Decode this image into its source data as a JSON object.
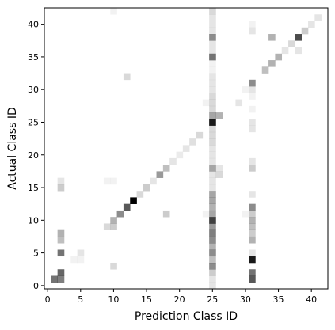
{
  "chart_data": {
    "type": "heatmap",
    "title": "",
    "xlabel": "Prediction Class ID",
    "ylabel": "Actual Class ID",
    "xlim": [
      0,
      43
    ],
    "ylim": [
      0,
      43
    ],
    "xticks": [
      0,
      5,
      10,
      15,
      20,
      25,
      30,
      35,
      40
    ],
    "yticks": [
      0,
      5,
      10,
      15,
      20,
      25,
      30,
      35,
      40
    ],
    "grid": false,
    "legend": "none",
    "cell_color": "#000000",
    "cells": [
      [
        1,
        1,
        0.55
      ],
      [
        2,
        1,
        0.5
      ],
      [
        2,
        2,
        0.6
      ],
      [
        2,
        5,
        0.55
      ],
      [
        2,
        7,
        0.25
      ],
      [
        2,
        8,
        0.3
      ],
      [
        2,
        15,
        0.2
      ],
      [
        2,
        16,
        0.1
      ],
      [
        4,
        4,
        0.05
      ],
      [
        5,
        5,
        0.1
      ],
      [
        5,
        4,
        0.05
      ],
      [
        9,
        9,
        0.15
      ],
      [
        10,
        9,
        0.2
      ],
      [
        10,
        10,
        0.3
      ],
      [
        10,
        3,
        0.15
      ],
      [
        10,
        16,
        0.05
      ],
      [
        9,
        16,
        0.05
      ],
      [
        10,
        42,
        0.05
      ],
      [
        11,
        11,
        0.45
      ],
      [
        12,
        12,
        0.65
      ],
      [
        13,
        13,
        1.0
      ],
      [
        14,
        14,
        0.15
      ],
      [
        15,
        15,
        0.2
      ],
      [
        16,
        16,
        0.1
      ],
      [
        17,
        17,
        0.4
      ],
      [
        18,
        18,
        0.25
      ],
      [
        18,
        11,
        0.2
      ],
      [
        19,
        19,
        0.1
      ],
      [
        20,
        20,
        0.08
      ],
      [
        21,
        21,
        0.1
      ],
      [
        22,
        22,
        0.12
      ],
      [
        23,
        23,
        0.15
      ],
      [
        12,
        32,
        0.15
      ],
      [
        25,
        0,
        0.1
      ],
      [
        25,
        1,
        0.1
      ],
      [
        25,
        2,
        0.2
      ],
      [
        25,
        3,
        0.45
      ],
      [
        25,
        4,
        0.25
      ],
      [
        25,
        5,
        0.45
      ],
      [
        25,
        6,
        0.3
      ],
      [
        25,
        7,
        0.45
      ],
      [
        25,
        8,
        0.5
      ],
      [
        25,
        9,
        0.4
      ],
      [
        25,
        10,
        0.75
      ],
      [
        25,
        11,
        0.35
      ],
      [
        25,
        12,
        0.3
      ],
      [
        25,
        13,
        0.35
      ],
      [
        25,
        14,
        0.35
      ],
      [
        25,
        15,
        0.1
      ],
      [
        25,
        16,
        0.1
      ],
      [
        25,
        17,
        0.1
      ],
      [
        25,
        18,
        0.35
      ],
      [
        25,
        19,
        0.1
      ],
      [
        25,
        20,
        0.1
      ],
      [
        25,
        21,
        0.1
      ],
      [
        25,
        22,
        0.15
      ],
      [
        25,
        23,
        0.15
      ],
      [
        25,
        24,
        0.15
      ],
      [
        25,
        25,
        0.9
      ],
      [
        25,
        26,
        0.35
      ],
      [
        25,
        27,
        0.15
      ],
      [
        25,
        28,
        0.15
      ],
      [
        25,
        29,
        0.15
      ],
      [
        25,
        30,
        0.1
      ],
      [
        25,
        31,
        0.1
      ],
      [
        25,
        32,
        0.1
      ],
      [
        25,
        33,
        0.05
      ],
      [
        25,
        34,
        0.05
      ],
      [
        25,
        35,
        0.55
      ],
      [
        25,
        36,
        0.1
      ],
      [
        25,
        37,
        0.1
      ],
      [
        25,
        38,
        0.45
      ],
      [
        25,
        39,
        0.1
      ],
      [
        25,
        40,
        0.1
      ],
      [
        25,
        41,
        0.1
      ],
      [
        25,
        42,
        0.15
      ],
      [
        26,
        26,
        0.3
      ],
      [
        26,
        17,
        0.15
      ],
      [
        26,
        18,
        0.1
      ],
      [
        24,
        11,
        0.05
      ],
      [
        24,
        28,
        0.05
      ],
      [
        31,
        1,
        0.65
      ],
      [
        31,
        2,
        0.55
      ],
      [
        31,
        4,
        0.9
      ],
      [
        31,
        5,
        0.1
      ],
      [
        31,
        7,
        0.3
      ],
      [
        31,
        8,
        0.2
      ],
      [
        31,
        9,
        0.25
      ],
      [
        31,
        10,
        0.3
      ],
      [
        31,
        11,
        0.2
      ],
      [
        31,
        12,
        0.45
      ],
      [
        31,
        14,
        0.1
      ],
      [
        31,
        18,
        0.2
      ],
      [
        31,
        19,
        0.1
      ],
      [
        31,
        24,
        0.1
      ],
      [
        31,
        25,
        0.1
      ],
      [
        31,
        27,
        0.05
      ],
      [
        31,
        29,
        0.05
      ],
      [
        31,
        30,
        0.1
      ],
      [
        31,
        31,
        0.45
      ],
      [
        31,
        39,
        0.1
      ],
      [
        31,
        40,
        0.05
      ],
      [
        30,
        11,
        0.05
      ],
      [
        29,
        28,
        0.1
      ],
      [
        30,
        30,
        0.05
      ],
      [
        33,
        33,
        0.25
      ],
      [
        34,
        34,
        0.3
      ],
      [
        35,
        35,
        0.3
      ],
      [
        36,
        36,
        0.1
      ],
      [
        37,
        37,
        0.15
      ],
      [
        38,
        38,
        0.7
      ],
      [
        39,
        39,
        0.2
      ],
      [
        41,
        41,
        0.1
      ],
      [
        40,
        40,
        0.1
      ],
      [
        34,
        38,
        0.3
      ],
      [
        38,
        36,
        0.1
      ]
    ]
  }
}
